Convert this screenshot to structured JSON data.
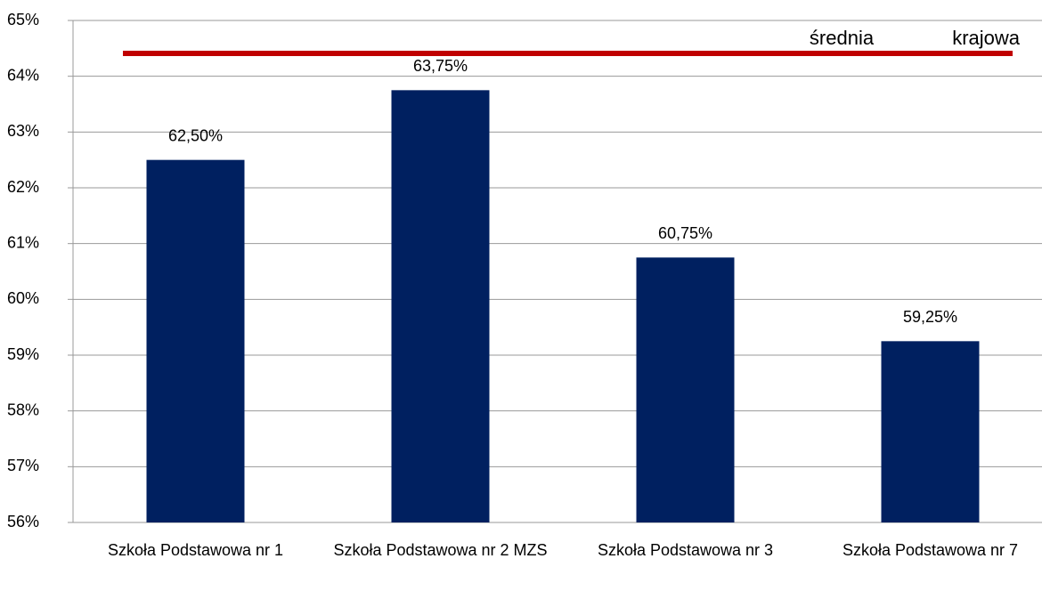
{
  "chart_data": {
    "type": "bar",
    "categories": [
      "Szkoła Podstawowa nr 1",
      "Szkoła Podstawowa nr 2 MZS",
      "Szkoła Podstawowa nr 3",
      "Szkoła Podstawowa nr 7"
    ],
    "values": [
      62.5,
      63.75,
      60.75,
      59.25
    ],
    "value_labels": [
      "62,50%",
      "63,75%",
      "60,75%",
      "59,25%"
    ],
    "color": "#002060",
    "ylim": [
      56,
      65
    ],
    "yticks": [
      {
        "value": 56,
        "label": "56%"
      },
      {
        "value": 57,
        "label": "57%"
      },
      {
        "value": 58,
        "label": "58%"
      },
      {
        "value": 59,
        "label": "59%"
      },
      {
        "value": 60,
        "label": "60%"
      },
      {
        "value": 61,
        "label": "61%"
      },
      {
        "value": 62,
        "label": "62%"
      },
      {
        "value": 63,
        "label": "63%"
      },
      {
        "value": 64,
        "label": "64%"
      },
      {
        "value": 65,
        "label": "65%"
      }
    ],
    "grid": true,
    "reference_line": {
      "label": "średnia krajowa",
      "value": 64.41,
      "color": "#c00000"
    }
  }
}
